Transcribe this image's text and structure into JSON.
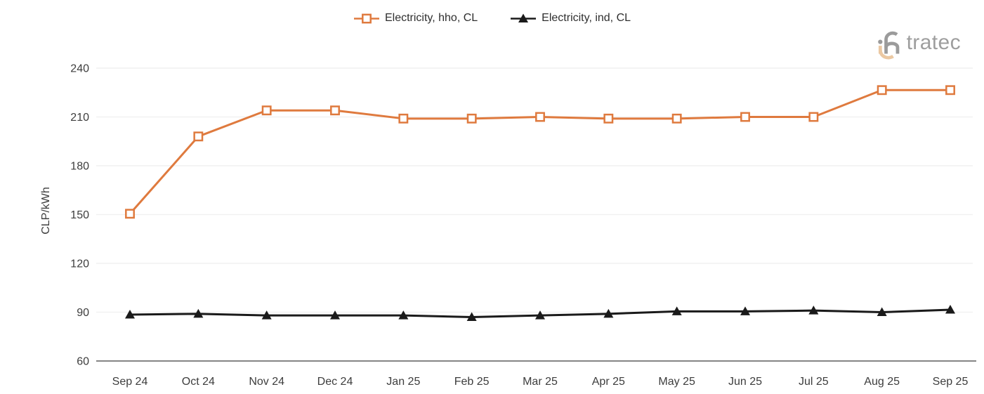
{
  "legend": {
    "items": [
      {
        "label": "Electricity, hho, CL"
      },
      {
        "label": "Electricity, ind, CL"
      }
    ]
  },
  "logo": {
    "brand": "intratec",
    "wordmark_text": "tratec"
  },
  "chart_data": {
    "type": "line",
    "title": "",
    "xlabel": "",
    "ylabel": "CLP/kWh",
    "categories": [
      "Sep 24",
      "Oct 24",
      "Nov 24",
      "Dec 24",
      "Jan 25",
      "Feb 25",
      "Mar 25",
      "Apr 25",
      "May 25",
      "Jun 25",
      "Jul 25",
      "Aug 25",
      "Sep 25"
    ],
    "series": [
      {
        "name": "Electricity, hho, CL",
        "color": "#DF7A3E",
        "marker": "square-open",
        "values": [
          150.5,
          198,
          214,
          214,
          209,
          209,
          210,
          209,
          209,
          210,
          210,
          226.5,
          226.5
        ]
      },
      {
        "name": "Electricity, ind, CL",
        "color": "#1A1A1A",
        "marker": "triangle-filled",
        "values": [
          88.5,
          89,
          88,
          88,
          88,
          87,
          88,
          89,
          90.5,
          90.5,
          91,
          90,
          91.5
        ]
      }
    ],
    "ylim": [
      60,
      240
    ],
    "yticks": [
      60,
      90,
      120,
      150,
      180,
      210,
      240
    ],
    "grid": "horizontal",
    "legend_position": "top-center",
    "styles": {
      "grid_color": "#F1F1F1",
      "axis_color": "#858585",
      "text_color": "#3D3D3D",
      "background": "#FFFFFF",
      "logo_gray": "#9B9B9B",
      "logo_tan": "#EBC8A2"
    }
  }
}
